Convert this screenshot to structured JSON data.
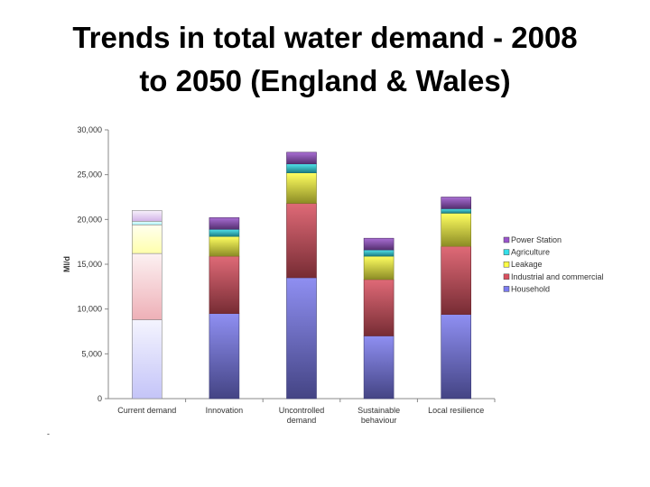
{
  "slide": {
    "title_line1": "Trends in total water demand - 2008",
    "title_line2": "to 2050 (England & Wales)",
    "footnote": "-"
  },
  "chart_data": {
    "type": "bar",
    "stacked": true,
    "title": "",
    "xlabel": "",
    "ylabel": "Ml/d",
    "ylim": [
      0,
      30000
    ],
    "yticks": [
      0,
      5000,
      10000,
      15000,
      20000,
      25000,
      30000
    ],
    "ytick_labels": [
      "0",
      "5,000",
      "10,000",
      "15,000",
      "20,000",
      "25,000",
      "30,000"
    ],
    "grid": false,
    "legend_position": "right",
    "categories": [
      "Current demand",
      "Innovation",
      "Uncontrolled demand",
      "Sustainable behaviour",
      "Local resilience"
    ],
    "category_lines": [
      [
        "Current demand"
      ],
      [
        "Innovation"
      ],
      [
        "Uncontrolled",
        "demand"
      ],
      [
        "Sustainable",
        "behaviour"
      ],
      [
        "Local resilience"
      ]
    ],
    "series": [
      {
        "name": "Household",
        "values": [
          8800,
          9500,
          13500,
          7000,
          9400
        ],
        "color": "#7b7bf0"
      },
      {
        "name": "Industrial and commercial",
        "values": [
          7400,
          6400,
          8300,
          6300,
          7600
        ],
        "color": "#d9505f"
      },
      {
        "name": "Leakage",
        "values": [
          3200,
          2200,
          3400,
          2600,
          3700
        ],
        "color": "#ffff44"
      },
      {
        "name": "Agriculture",
        "values": [
          400,
          800,
          1000,
          700,
          500
        ],
        "color": "#33e0ea"
      },
      {
        "name": "Power Station",
        "values": [
          1200,
          1300,
          1300,
          1300,
          1300
        ],
        "color": "#9a55cc"
      }
    ],
    "legend_order": [
      "Power Station",
      "Agriculture",
      "Leakage",
      "Industrial and commercial",
      "Household"
    ]
  }
}
